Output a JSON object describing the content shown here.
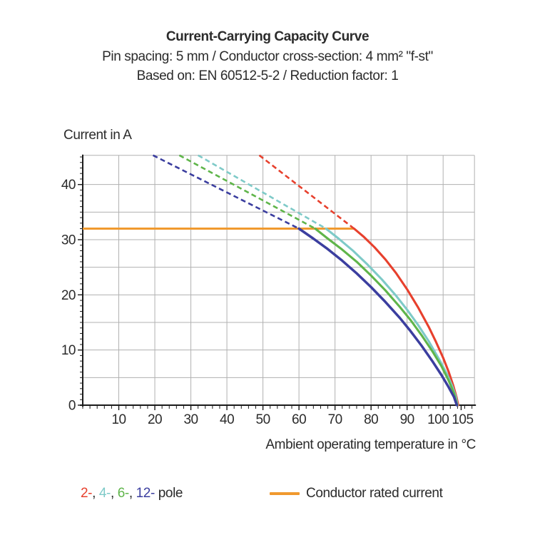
{
  "title": {
    "line1": "Current-Carrying Capacity Curve",
    "line2": "Pin spacing: 5 mm / Conductor cross-section: 4 mm² \"f-st\"",
    "line3": "Based on: EN 60512-5-2 / Reduction factor: 1"
  },
  "y_axis_title": "Current in A",
  "x_axis_title": "Ambient operating temperature in °C",
  "legend": {
    "pole_items": [
      {
        "label": "2-",
        "color": "#e7402d"
      },
      {
        "label": "4-",
        "color": "#7ecac8"
      },
      {
        "label": "6-",
        "color": "#5fb54a"
      },
      {
        "label": "12-",
        "color": "#3b3e9f"
      }
    ],
    "separator": ", ",
    "pole_suffix": " pole",
    "rated_label": "Conductor rated current",
    "rated_color": "#f0992e"
  },
  "chart_data": {
    "type": "line",
    "title": "Current-Carrying Capacity Curve",
    "xlabel": "Ambient operating temperature in °C",
    "ylabel": "Current in A",
    "x_range": [
      0,
      108.7
    ],
    "y_range": [
      0,
      45.3
    ],
    "grid": true,
    "x_gridline_step": 10,
    "y_gridline_step": 5,
    "x_minor_tick_step": 2,
    "y_minor_tick_step": 1,
    "x_major_ticks": [
      {
        "v": 10,
        "label": "10",
        "dx": 0
      },
      {
        "v": 20,
        "label": "20",
        "dx": 0
      },
      {
        "v": 30,
        "label": "30",
        "dx": 0
      },
      {
        "v": 40,
        "label": "40",
        "dx": 0
      },
      {
        "v": 50,
        "label": "50",
        "dx": 0
      },
      {
        "v": 60,
        "label": "60",
        "dx": 0
      },
      {
        "v": 70,
        "label": "70",
        "dx": 0
      },
      {
        "v": 80,
        "label": "80",
        "dx": 0
      },
      {
        "v": 90,
        "label": "90",
        "dx": 0
      },
      {
        "v": 100,
        "label": "100",
        "dx": -7
      },
      {
        "v": 105,
        "label": "105",
        "dx": 2
      }
    ],
    "y_major_ticks": [
      {
        "v": 0,
        "label": "0"
      },
      {
        "v": 10,
        "label": "10"
      },
      {
        "v": 20,
        "label": "20"
      },
      {
        "v": 30,
        "label": "30"
      },
      {
        "v": 40,
        "label": "40"
      }
    ],
    "rated_current": {
      "label": "Conductor rated current",
      "value_amps": 32,
      "x_start": 0,
      "x_end": 75.3,
      "color": "#f0992e"
    },
    "series": [
      {
        "name": "2-pole",
        "color": "#e7402d",
        "dashed": [
          [
            49.0,
            45.3
          ],
          [
            75.3,
            32
          ]
        ],
        "solid": [
          [
            75.3,
            32
          ],
          [
            78,
            30.5
          ],
          [
            81,
            28.6
          ],
          [
            84,
            26.4
          ],
          [
            87,
            23.9
          ],
          [
            90,
            21.0
          ],
          [
            93,
            17.8
          ],
          [
            96,
            14.2
          ],
          [
            98,
            11.5
          ],
          [
            100,
            8.6
          ],
          [
            101.5,
            6.1
          ],
          [
            102.8,
            3.6
          ],
          [
            103.7,
            1.5
          ],
          [
            104.2,
            0
          ]
        ]
      },
      {
        "name": "4-pole",
        "color": "#7ecac8",
        "dashed": [
          [
            32.0,
            45.3
          ],
          [
            67.5,
            32
          ]
        ],
        "solid": [
          [
            67.5,
            32
          ],
          [
            71,
            30.2
          ],
          [
            75,
            28.0
          ],
          [
            79,
            25.5
          ],
          [
            83,
            22.8
          ],
          [
            87,
            19.8
          ],
          [
            90,
            17.3
          ],
          [
            93,
            14.6
          ],
          [
            96,
            11.6
          ],
          [
            99,
            8.2
          ],
          [
            101,
            5.7
          ],
          [
            102.5,
            3.5
          ],
          [
            103.5,
            1.6
          ],
          [
            104.0,
            0
          ]
        ]
      },
      {
        "name": "6-pole",
        "color": "#5fb54a",
        "dashed": [
          [
            26.8,
            45.3
          ],
          [
            64.5,
            32
          ]
        ],
        "solid": [
          [
            64.5,
            32
          ],
          [
            68,
            30.2
          ],
          [
            72,
            28.2
          ],
          [
            76,
            26.0
          ],
          [
            80,
            23.5
          ],
          [
            84,
            20.8
          ],
          [
            88,
            17.8
          ],
          [
            91,
            15.4
          ],
          [
            94,
            12.7
          ],
          [
            97,
            9.8
          ],
          [
            99.5,
            7.1
          ],
          [
            101.5,
            4.5
          ],
          [
            103,
            2.2
          ],
          [
            103.9,
            0
          ]
        ]
      },
      {
        "name": "12-pole",
        "color": "#3b3e9f",
        "dashed": [
          [
            19.5,
            45.3
          ],
          [
            60.0,
            32
          ]
        ],
        "solid": [
          [
            60,
            32
          ],
          [
            64,
            30.2
          ],
          [
            68,
            28.3
          ],
          [
            72,
            26.2
          ],
          [
            76,
            23.9
          ],
          [
            80,
            21.4
          ],
          [
            84,
            18.7
          ],
          [
            88,
            15.8
          ],
          [
            91,
            13.4
          ],
          [
            94,
            10.8
          ],
          [
            97,
            8.0
          ],
          [
            99.5,
            5.5
          ],
          [
            101.5,
            3.3
          ],
          [
            103,
            1.5
          ],
          [
            103.8,
            0
          ]
        ]
      }
    ]
  },
  "style_colors": {
    "grid": "#b1b1b1",
    "axis": "#1b1b1b",
    "text": "#2b2b2b"
  }
}
